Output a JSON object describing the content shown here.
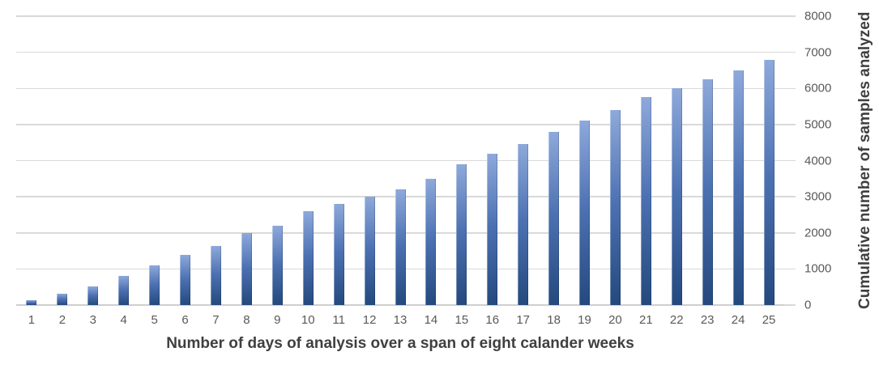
{
  "chart_data": {
    "type": "bar",
    "title": "",
    "xlabel": "Number of days of analysis over a span of eight calander weeks",
    "ylabel": "Cumulative number of samples analyzed",
    "categories": [
      "1",
      "2",
      "3",
      "4",
      "5",
      "6",
      "7",
      "8",
      "9",
      "10",
      "11",
      "12",
      "13",
      "14",
      "15",
      "16",
      "17",
      "18",
      "19",
      "20",
      "21",
      "22",
      "23",
      "24",
      "25"
    ],
    "values": [
      125,
      325,
      525,
      800,
      1100,
      1400,
      1625,
      2000,
      2200,
      2600,
      2800,
      3000,
      3200,
      3500,
      3900,
      4200,
      4450,
      4800,
      5100,
      5400,
      5750,
      6000,
      6250,
      6500,
      6800
    ],
    "ylim": [
      0,
      8000
    ],
    "yticks": [
      0,
      1000,
      2000,
      3000,
      4000,
      5000,
      6000,
      7000,
      8000
    ],
    "ytick_labels": [
      "0",
      "1000",
      "2000",
      "3000",
      "4000",
      "5000",
      "6000",
      "7000",
      "8000"
    ],
    "y_axis_side": "right",
    "grid": "horizontal",
    "legend": "none",
    "colors": {
      "background": "#ffffff",
      "bar_gradient_top": "#8ea9db",
      "bar_gradient_bottom": "#24497e",
      "gridline": "#d9d9d9",
      "axis_line": "#cfcfcf",
      "tick_label": "#595959",
      "axis_title": "#3f3f3f"
    }
  }
}
